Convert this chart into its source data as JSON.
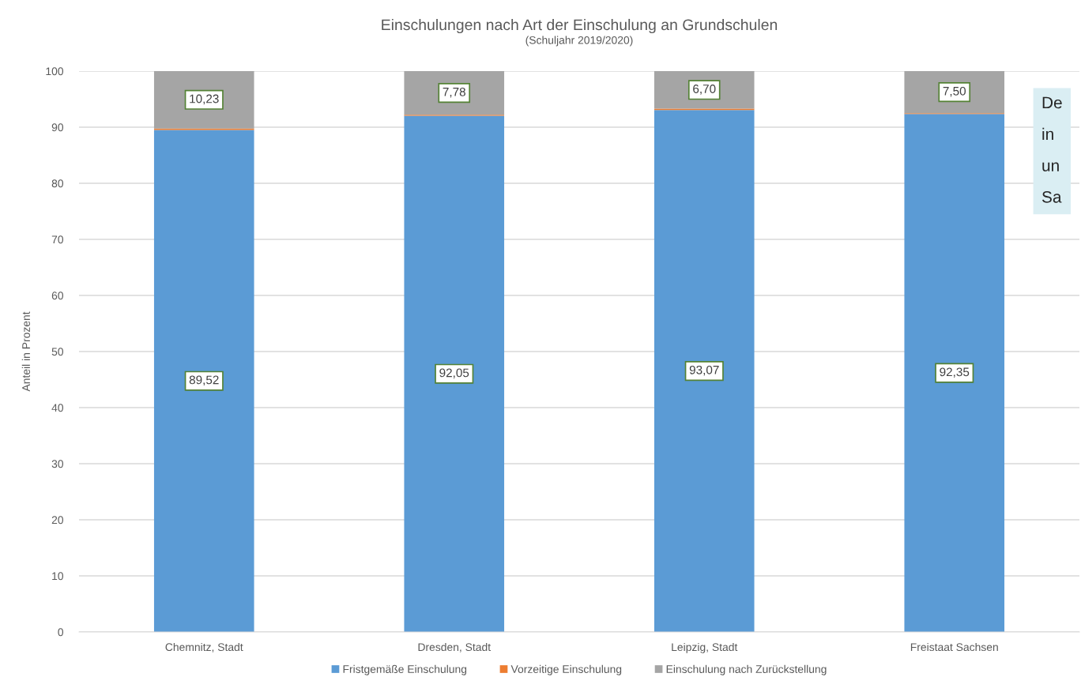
{
  "chart_data": {
    "type": "bar",
    "title": "Einschulungen nach Art der Einschulung an Grundschulen",
    "subtitle": "(Schuljahr 2019/2020)",
    "ylabel": "Anteil in Prozent",
    "categories": [
      "Chemnitz, Stadt",
      "Dresden, Stadt",
      "Leipzig, Stadt",
      "Freistaat Sachsen"
    ],
    "stacked": true,
    "series": [
      {
        "name": "Fristgemäße Einschulung",
        "color": "#5b9bd5",
        "values": [
          89.52,
          92.05,
          93.07,
          92.35
        ],
        "value_labels": [
          "89,52",
          "92,05",
          "93,07",
          "92,35"
        ]
      },
      {
        "name": "Vorzeitige Einschulung",
        "color": "#ed7d31",
        "values": [
          0.25,
          0.17,
          0.23,
          0.15
        ]
      },
      {
        "name": "Einschulung nach Zurückstellung",
        "color": "#a5a5a5",
        "values": [
          10.23,
          7.78,
          6.7,
          7.5
        ],
        "value_labels": [
          "10,23",
          "7,78",
          "6,70",
          "7,50"
        ]
      }
    ],
    "ylim": [
      0,
      100
    ],
    "yticks": [
      0,
      10,
      20,
      30,
      40,
      50,
      60,
      70,
      80,
      90,
      100
    ],
    "grid": "y",
    "legend": "bottom",
    "annotations": [
      "De\nin\nun\nSa"
    ]
  }
}
